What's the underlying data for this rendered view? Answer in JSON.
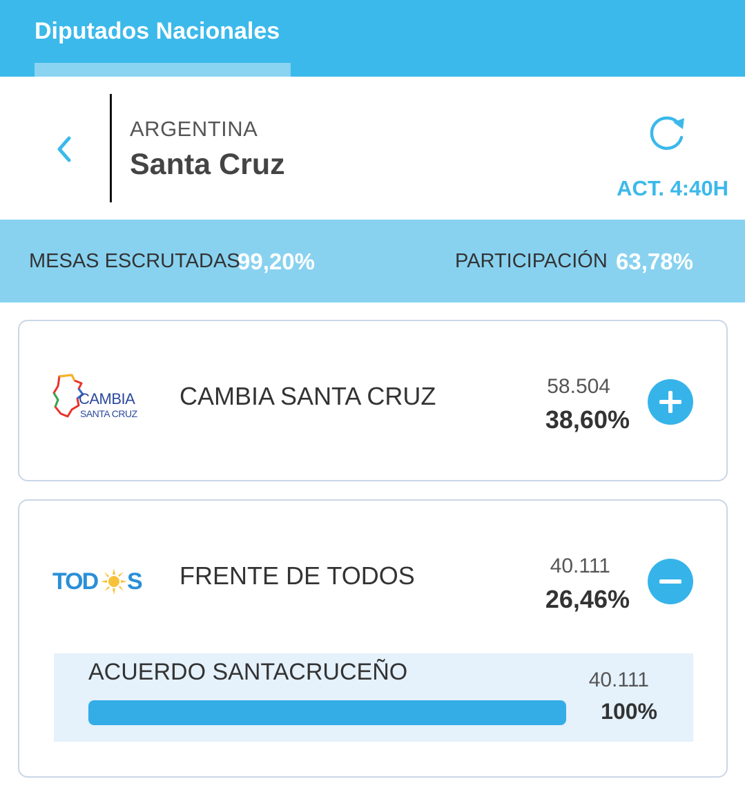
{
  "tabs": [
    {
      "label": "Diputados Nacionales",
      "active": true
    }
  ],
  "location": {
    "country": "ARGENTINA",
    "province": "Santa Cruz"
  },
  "updated": "ACT. 4:40H",
  "stats": {
    "mesas_label": "MESAS ESCRUTADAS",
    "mesas_value": "99,20%",
    "participacion_label": "PARTICIPACIÓN",
    "participacion_value": "63,78%"
  },
  "parties": [
    {
      "name": "CAMBIA SANTA CRUZ",
      "votes": "58.504",
      "percent": "38,60%",
      "expanded": false,
      "logo": {
        "text_main": "CAMBIA",
        "text_sub": "SANTA CRUZ",
        "icon": "province-map-icon"
      }
    },
    {
      "name": "FRENTE DE TODOS",
      "votes": "40.111",
      "percent": "26,46%",
      "expanded": true,
      "logo": {
        "text_left": "TOD",
        "text_right": "S",
        "icon": "sun-icon"
      },
      "lists": [
        {
          "name": "ACUERDO SANTACRUCEÑO",
          "votes": "40.111",
          "percent": "100%",
          "share": 1.0
        }
      ]
    }
  ],
  "colors": {
    "primary": "#3bb9ea",
    "stats_bg": "#88d2f0",
    "button": "#36b4ea",
    "bar": "#34ade6",
    "sub_bg": "#e5f1fb",
    "todos_blue": "#2a8fd8",
    "todos_sun": "#f7c23a"
  }
}
